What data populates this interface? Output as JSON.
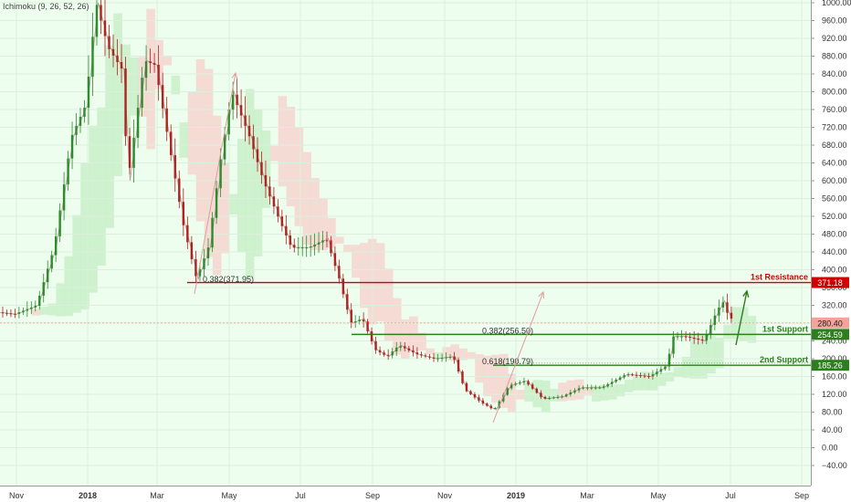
{
  "indicator_label": "Ichimoku (9, 26, 52, 26)",
  "chart_data": {
    "type": "candlestick",
    "x_ticks": [
      "Nov",
      "2018",
      "Mar",
      "May",
      "Jul",
      "Sep",
      "Nov",
      "2019",
      "Mar",
      "May",
      "Jul",
      "Sep"
    ],
    "y_ticks": [
      1000,
      960,
      920,
      880,
      840,
      800,
      760,
      720,
      680,
      640,
      600,
      560,
      520,
      480,
      440,
      400,
      360,
      320,
      280,
      240,
      200,
      160,
      120,
      80,
      40,
      0,
      -40
    ],
    "y_tick_labels": [
      "1000.00",
      "960.00",
      "920.00",
      "880.00",
      "840.00",
      "800.00",
      "760.00",
      "720.00",
      "680.00",
      "640.00",
      "600.00",
      "560.00",
      "520.00",
      "480.00",
      "440.00",
      "400.00",
      "360.00",
      "320.00",
      "280.00",
      "240.00",
      "200.00",
      "160.00",
      "120.00",
      "80.00",
      "40.00",
      "0.00",
      "−40.00"
    ],
    "ylim": [
      -55,
      1010
    ],
    "price_path": [
      [
        "2017-10-15",
        305
      ],
      [
        "2017-11-01",
        300
      ],
      [
        "2017-11-20",
        320
      ],
      [
        "2017-12-05",
        450
      ],
      [
        "2017-12-20",
        700
      ],
      [
        "2018-01-01",
        770
      ],
      [
        "2018-01-10",
        1000
      ],
      [
        "2018-01-20",
        900
      ],
      [
        "2018-02-01",
        850
      ],
      [
        "2018-02-06",
        600
      ],
      [
        "2018-02-20",
        870
      ],
      [
        "2018-03-01",
        860
      ],
      [
        "2018-03-15",
        650
      ],
      [
        "2018-03-25",
        500
      ],
      [
        "2018-04-05",
        380
      ],
      [
        "2018-04-15",
        450
      ],
      [
        "2018-04-25",
        640
      ],
      [
        "2018-05-05",
        800
      ],
      [
        "2018-05-20",
        700
      ],
      [
        "2018-06-01",
        600
      ],
      [
        "2018-06-15",
        510
      ],
      [
        "2018-06-25",
        450
      ],
      [
        "2018-07-10",
        450
      ],
      [
        "2018-07-25",
        470
      ],
      [
        "2018-08-05",
        380
      ],
      [
        "2018-08-15",
        280
      ],
      [
        "2018-08-25",
        290
      ],
      [
        "2018-09-05",
        220
      ],
      [
        "2018-09-15",
        205
      ],
      [
        "2018-09-25",
        230
      ],
      [
        "2018-10-10",
        210
      ],
      [
        "2018-10-25",
        200
      ],
      [
        "2018-11-10",
        205
      ],
      [
        "2018-11-20",
        130
      ],
      [
        "2018-12-05",
        100
      ],
      [
        "2018-12-15",
        85
      ],
      [
        "2018-12-28",
        140
      ],
      [
        "2019-01-10",
        150
      ],
      [
        "2019-01-25",
        110
      ],
      [
        "2019-02-10",
        115
      ],
      [
        "2019-02-25",
        135
      ],
      [
        "2019-03-15",
        135
      ],
      [
        "2019-04-05",
        165
      ],
      [
        "2019-04-25",
        160
      ],
      [
        "2019-05-10",
        185
      ],
      [
        "2019-05-15",
        250
      ],
      [
        "2019-05-25",
        250
      ],
      [
        "2019-06-10",
        240
      ],
      [
        "2019-06-20",
        300
      ],
      [
        "2019-06-26",
        330
      ],
      [
        "2019-07-02",
        290
      ]
    ],
    "levels": [
      {
        "name": "1st Resistance",
        "value": 371.18,
        "label": "371.18",
        "color": "#d10000"
      },
      {
        "name": "1st Support",
        "value": 254.59,
        "label": "254.59",
        "color": "#2e7d1f"
      },
      {
        "name": "2nd Support",
        "value": 185.26,
        "label": "185.26",
        "color": "#2e7d1f"
      }
    ],
    "current_price": {
      "value": 280.4,
      "label": "280.40",
      "color": "#f2a49a"
    },
    "fib_annotations": [
      {
        "text": "0.382(256.50)",
        "value": 258
      },
      {
        "text": "0.618(190.79)",
        "value": 190
      },
      {
        "text": "0.382(371.95)",
        "value": 374
      }
    ],
    "colors": {
      "up": "#2e8b2e",
      "down": "#b22222",
      "background": "#edfdee",
      "cloud_bull": "#c8eec8",
      "cloud_bear": "#f5d6d0"
    }
  }
}
